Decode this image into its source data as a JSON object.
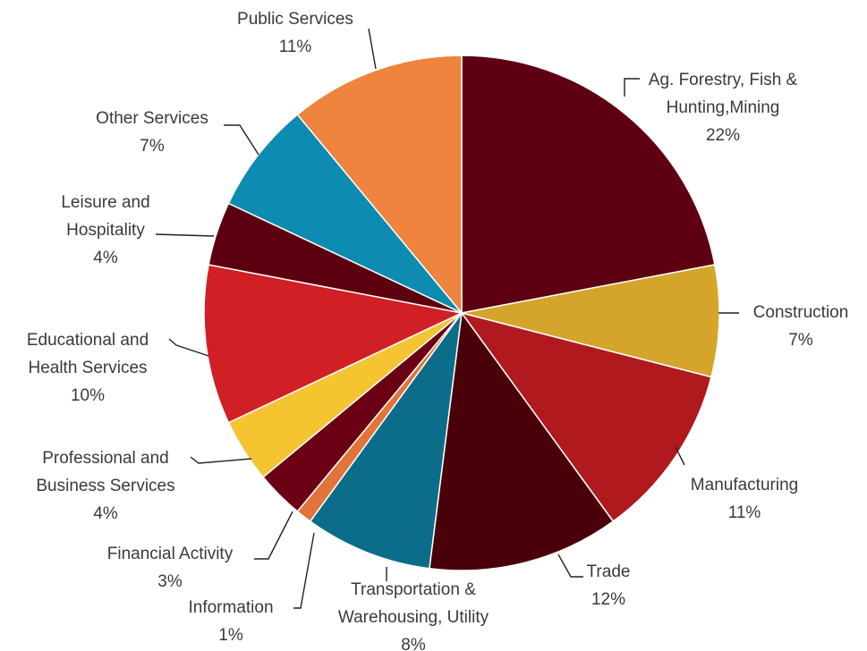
{
  "chart_data": {
    "type": "pie",
    "title": "",
    "legend": "none",
    "slices": [
      {
        "name": "Ag. Forestry, Fish & Hunting,Mining",
        "lines": [
          "Ag. Forestry, Fish &",
          "Hunting,Mining"
        ],
        "value": 22,
        "pct_label": "22%",
        "color": "#5e0012"
      },
      {
        "name": "Construction",
        "lines": [
          "Construction"
        ],
        "value": 7,
        "pct_label": "7%",
        "color": "#d4a52a"
      },
      {
        "name": "Manufacturing",
        "lines": [
          "Manufacturing"
        ],
        "value": 11,
        "pct_label": "11%",
        "color": "#b0191e"
      },
      {
        "name": "Trade",
        "lines": [
          "Trade"
        ],
        "value": 12,
        "pct_label": "12%",
        "color": "#4a0008"
      },
      {
        "name": "Transportation & Warehousing, Utility",
        "lines": [
          "Transportation &",
          "Warehousing, Utility"
        ],
        "value": 8,
        "pct_label": "8%",
        "color": "#0b6d8a"
      },
      {
        "name": "Information",
        "lines": [
          "Information"
        ],
        "value": 1,
        "pct_label": "1%",
        "color": "#e2733a"
      },
      {
        "name": "Financial Activity",
        "lines": [
          "Financial Activity"
        ],
        "value": 3,
        "pct_label": "3%",
        "color": "#6b0014"
      },
      {
        "name": "Professional and Business Services",
        "lines": [
          "Professional and",
          "Business Services"
        ],
        "value": 4,
        "pct_label": "4%",
        "color": "#f5c431"
      },
      {
        "name": "Educational and Health Services",
        "lines": [
          "Educational and",
          "Health Services"
        ],
        "value": 10,
        "pct_label": "10%",
        "color": "#d11f26"
      },
      {
        "name": "Leisure and Hospitality",
        "lines": [
          "Leisure and",
          "Hospitality"
        ],
        "value": 4,
        "pct_label": "4%",
        "color": "#5c0010"
      },
      {
        "name": "Other Services",
        "lines": [
          "Other Services"
        ],
        "value": 7,
        "pct_label": "7%",
        "color": "#0e8bb0"
      },
      {
        "name": "Public Services",
        "lines": [
          "Public Services"
        ],
        "value": 11,
        "pct_label": "11%",
        "color": "#ee843e"
      }
    ]
  }
}
